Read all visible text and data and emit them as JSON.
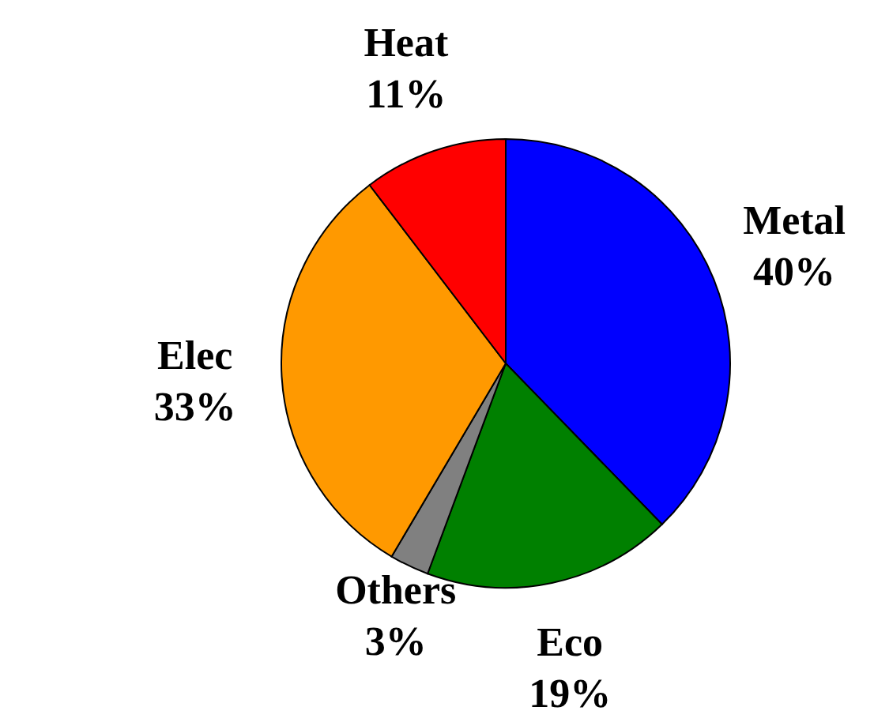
{
  "chart_data": {
    "type": "pie",
    "categories": [
      "Metal",
      "Eco",
      "Others",
      "Elec",
      "Heat"
    ],
    "values": [
      40,
      19,
      3,
      33,
      11
    ],
    "value_labels": [
      "40%",
      "19%",
      "3%",
      "33%",
      "11%"
    ],
    "colors": [
      "#0000ff",
      "#008000",
      "#808080",
      "#ff9900",
      "#ff0000"
    ]
  }
}
